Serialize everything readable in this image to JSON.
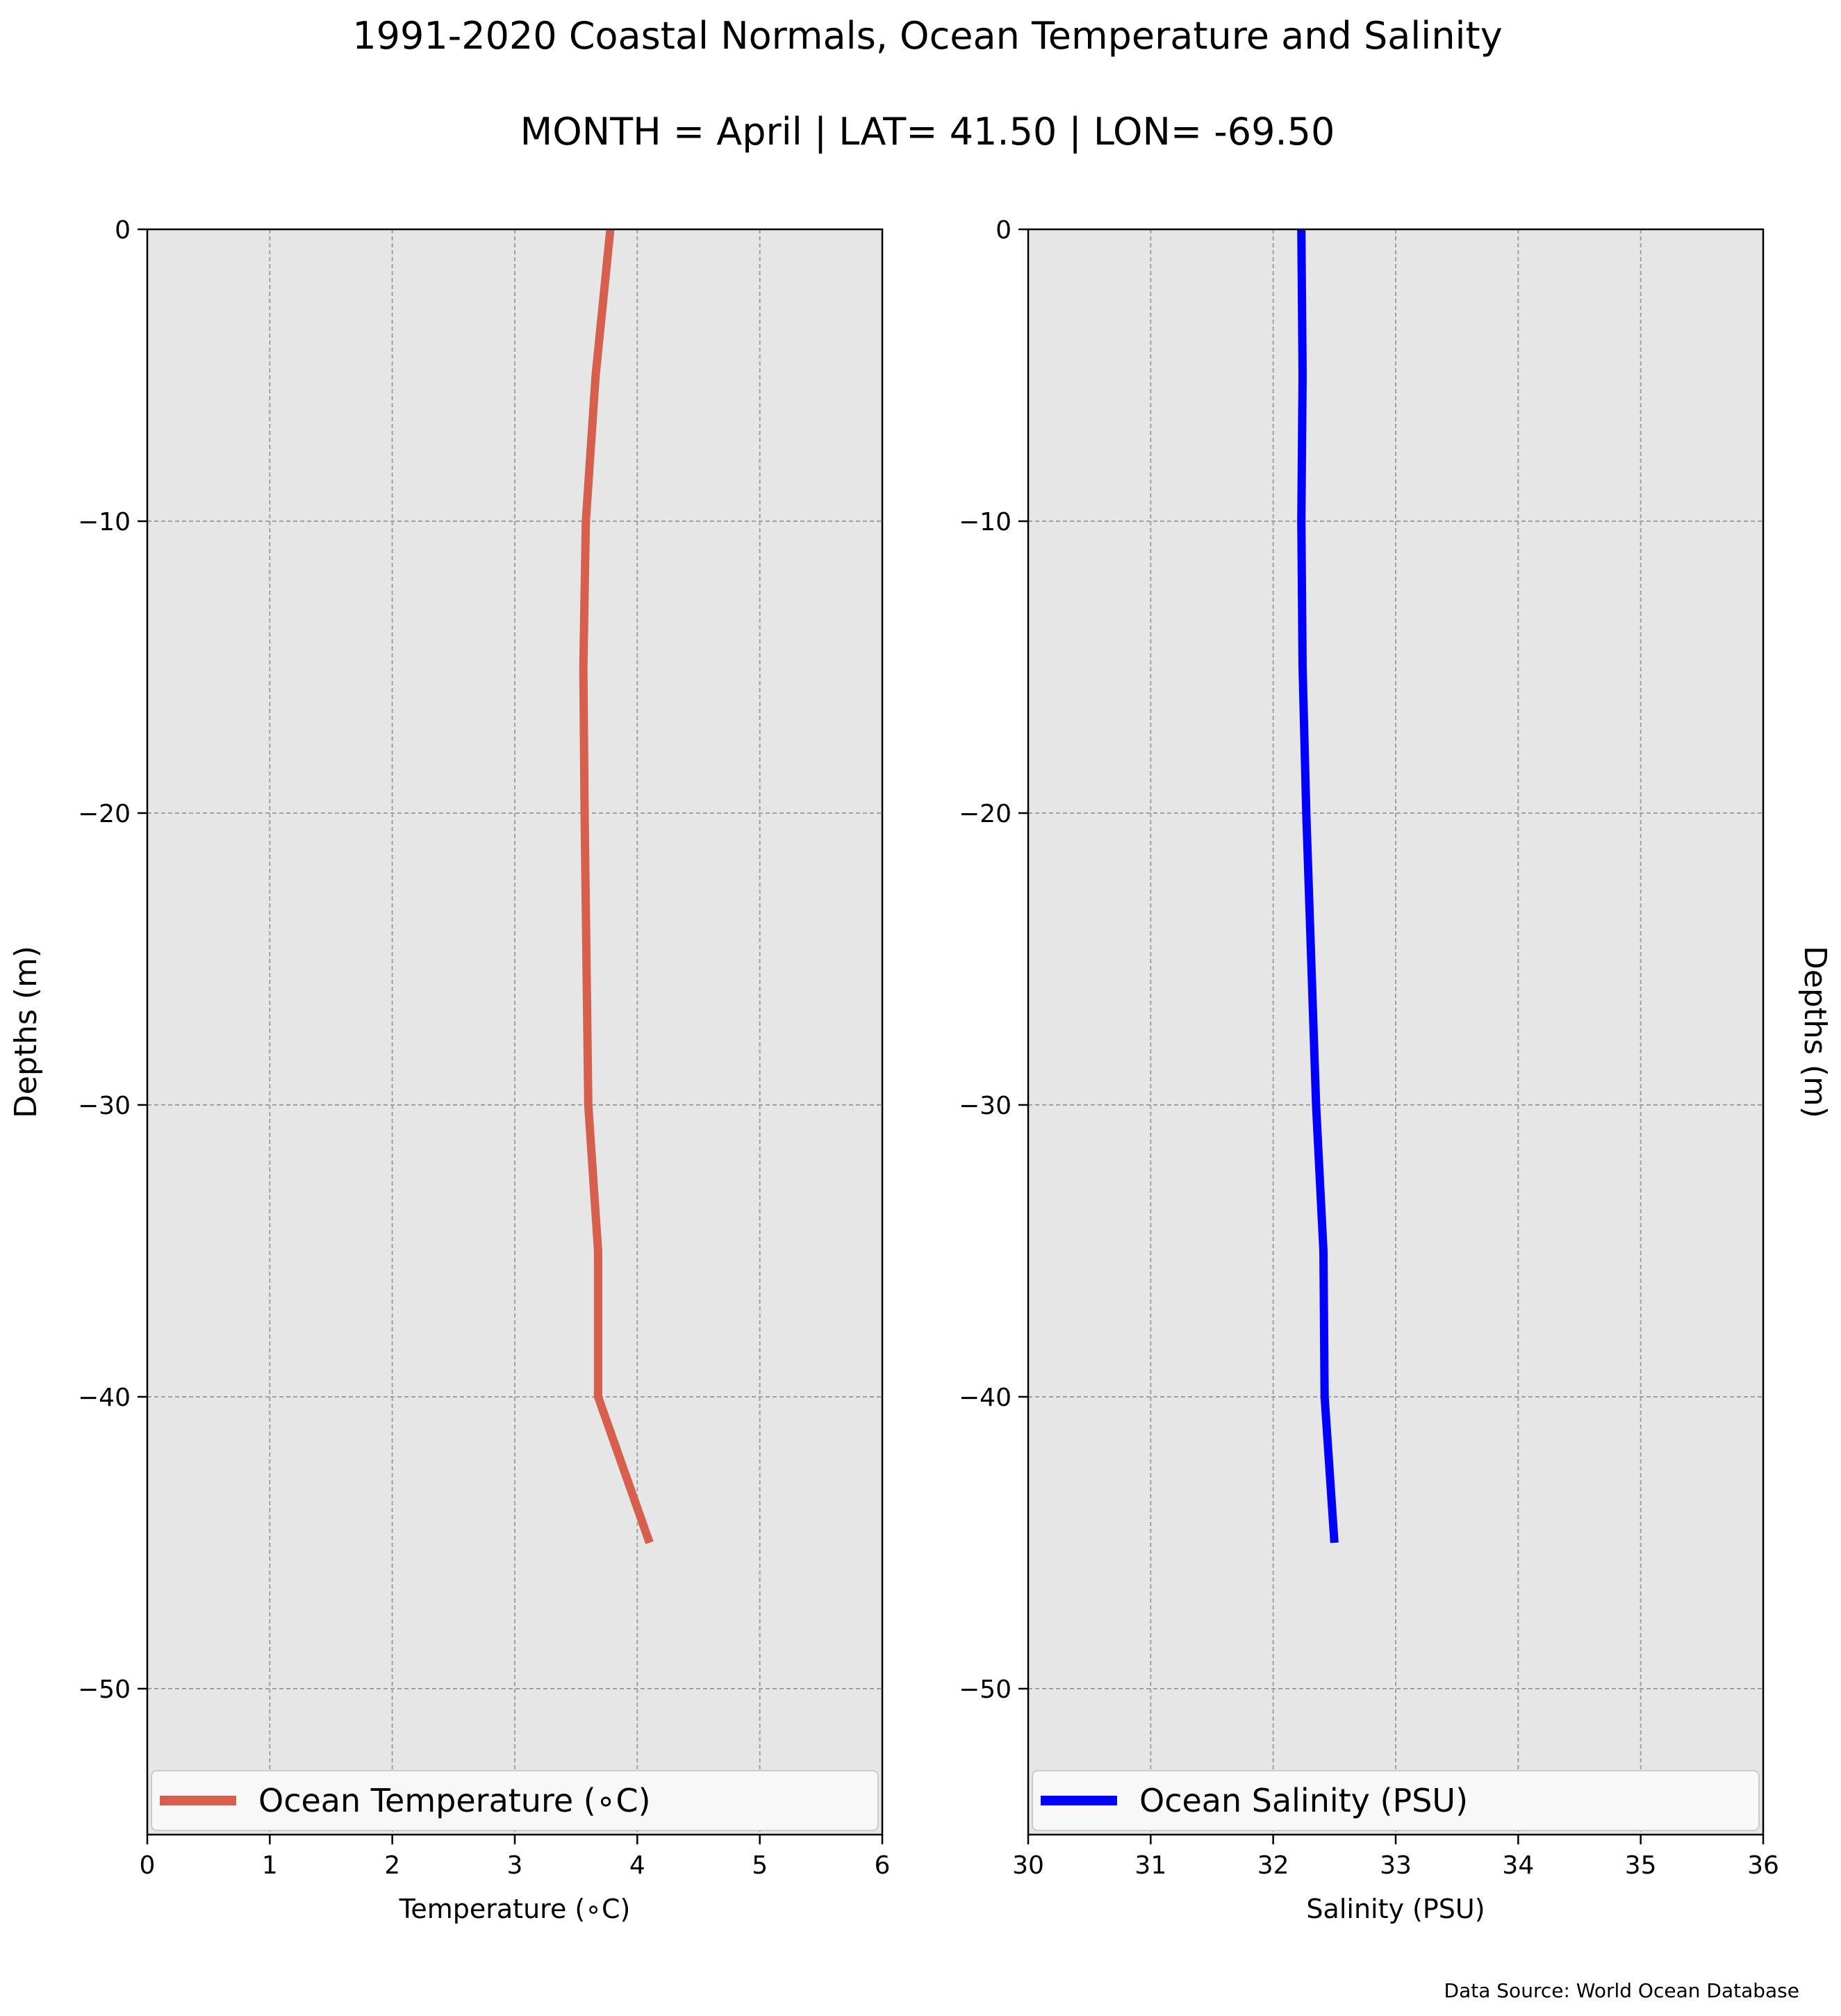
{
  "title": "1991-2020 Coastal Normals, Ocean Temperature and Salinity",
  "subtitle": "MONTH = April | LAT= 41.50 | LON= -69.50",
  "source_note": "Data Source: World Ocean Database",
  "chart_data": [
    {
      "type": "line",
      "xlabel": "Temperature (∘C)",
      "ylabel": "Depths (m)",
      "ylabel_side": "left",
      "xlim": [
        0,
        6
      ],
      "ylim": [
        -55,
        0
      ],
      "xticks": [
        0,
        1,
        2,
        3,
        4,
        5,
        6
      ],
      "xtick_labels": [
        "0",
        "1",
        "2",
        "3",
        "4",
        "5",
        "6"
      ],
      "yticks": [
        0,
        -10,
        -20,
        -30,
        -40,
        -50
      ],
      "ytick_labels": [
        "0",
        "−10",
        "−20",
        "−30",
        "−40",
        "−50"
      ],
      "grid": true,
      "legend_position": "bottom",
      "series": [
        {
          "name": "Ocean Temperature (∘C)",
          "color": "#d6604d",
          "x": [
            3.78,
            3.66,
            3.58,
            3.56,
            3.57,
            3.6,
            3.68,
            3.68,
            4.1
          ],
          "y": [
            0,
            -5,
            -10,
            -15,
            -20,
            -30,
            -35,
            -40,
            -45
          ]
        }
      ]
    },
    {
      "type": "line",
      "xlabel": "Salinity (PSU)",
      "ylabel": "Depths (m)",
      "ylabel_side": "right",
      "xlim": [
        30,
        36
      ],
      "ylim": [
        -55,
        0
      ],
      "xticks": [
        30,
        31,
        32,
        33,
        34,
        35,
        36
      ],
      "xtick_labels": [
        "30",
        "31",
        "32",
        "33",
        "34",
        "35",
        "36"
      ],
      "yticks": [
        0,
        -10,
        -20,
        -30,
        -40,
        -50
      ],
      "ytick_labels": [
        "0",
        "−10",
        "−20",
        "−30",
        "−40",
        "−50"
      ],
      "grid": true,
      "legend_position": "bottom",
      "series": [
        {
          "name": "Ocean Salinity (PSU)",
          "color": "#0000ff",
          "x": [
            32.23,
            32.24,
            32.23,
            32.24,
            32.27,
            32.35,
            32.41,
            32.42,
            32.5
          ],
          "y": [
            0,
            -5,
            -10,
            -15,
            -20,
            -30,
            -35,
            -40,
            -45
          ]
        }
      ]
    }
  ],
  "colors": {
    "axes_background": "#e6e6e6",
    "grid": "#a0a0a0",
    "legend_background": "#f8f8f8"
  }
}
